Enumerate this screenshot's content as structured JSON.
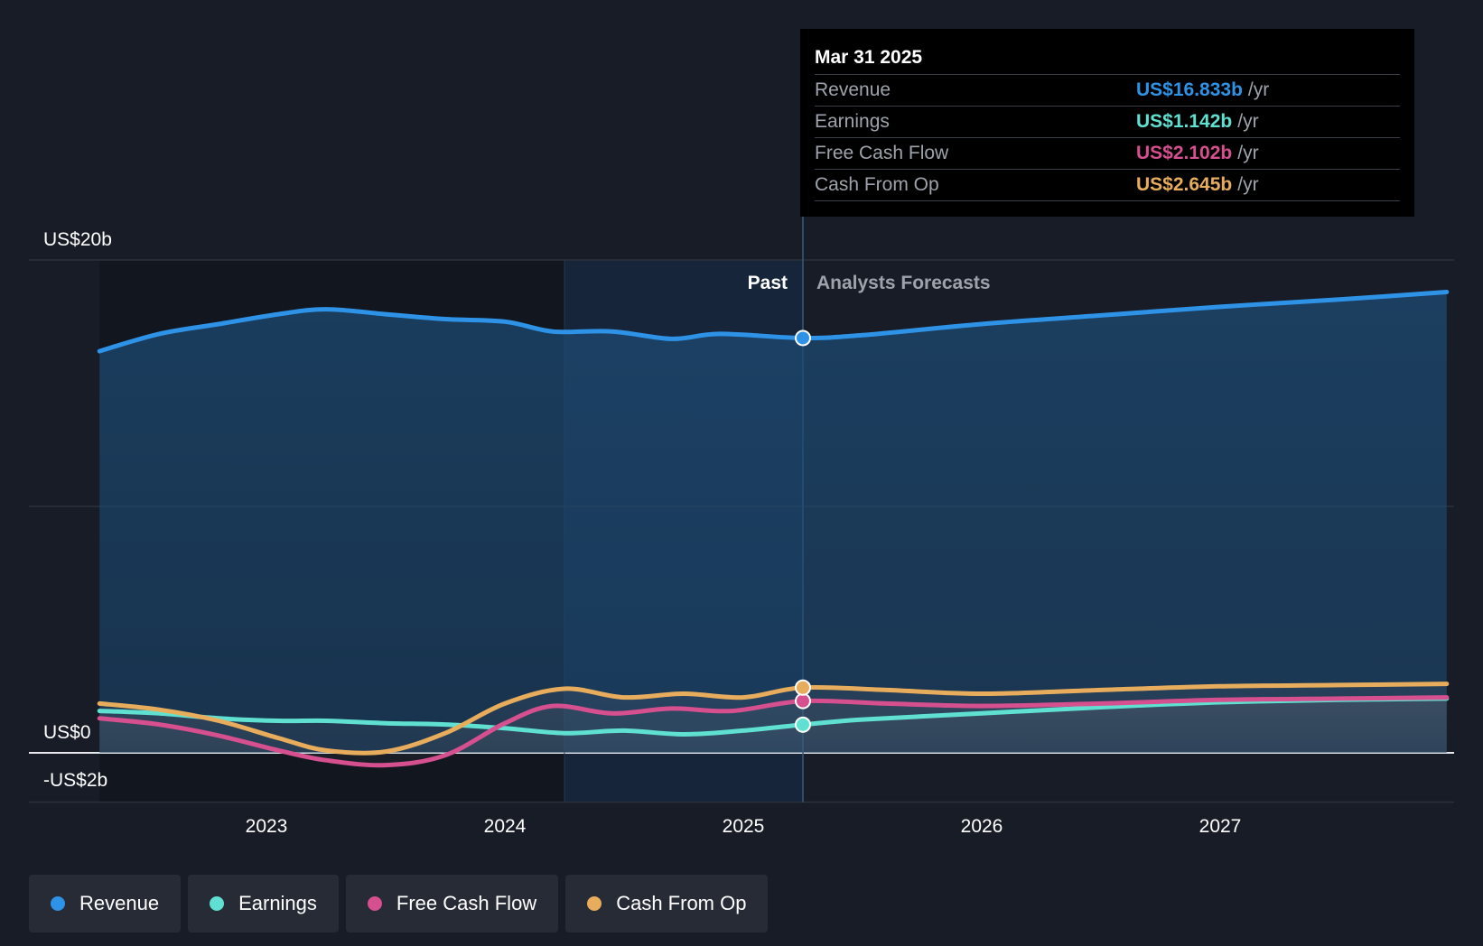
{
  "chart_data": {
    "type": "line",
    "y_unit_labels": {
      "top": "US$20b",
      "zero": "US$0",
      "bottom": "-US$2b"
    },
    "ylim": [
      -2,
      20
    ],
    "xlim": [
      2022.3,
      2027.95
    ],
    "x_ticks": [
      2023,
      2024,
      2025,
      2026,
      2027
    ],
    "x_tick_labels": [
      "2023",
      "2024",
      "2025",
      "2026",
      "2027"
    ],
    "past_label": "Past",
    "forecast_label": "Analysts Forecasts",
    "divider_x": 2025.25,
    "highlight_start_x": 2024.25,
    "grid": true,
    "series": [
      {
        "name": "Revenue",
        "color": "#2e93e6",
        "points": [
          [
            2022.3,
            16.3
          ],
          [
            2022.55,
            17.0
          ],
          [
            2022.8,
            17.4
          ],
          [
            2023.05,
            17.8
          ],
          [
            2023.25,
            18.0
          ],
          [
            2023.5,
            17.8
          ],
          [
            2023.75,
            17.6
          ],
          [
            2024.0,
            17.5
          ],
          [
            2024.2,
            17.1
          ],
          [
            2024.45,
            17.1
          ],
          [
            2024.7,
            16.8
          ],
          [
            2024.9,
            17.0
          ],
          [
            2025.25,
            16.833
          ],
          [
            2025.5,
            16.95
          ],
          [
            2026.0,
            17.4
          ],
          [
            2026.5,
            17.75
          ],
          [
            2027.0,
            18.1
          ],
          [
            2027.5,
            18.4
          ],
          [
            2027.95,
            18.7
          ]
        ]
      },
      {
        "name": "Earnings",
        "color": "#5fe0d1",
        "points": [
          [
            2022.3,
            1.7
          ],
          [
            2022.55,
            1.6
          ],
          [
            2022.8,
            1.4
          ],
          [
            2023.05,
            1.3
          ],
          [
            2023.25,
            1.3
          ],
          [
            2023.5,
            1.2
          ],
          [
            2023.75,
            1.15
          ],
          [
            2024.0,
            1.0
          ],
          [
            2024.25,
            0.8
          ],
          [
            2024.5,
            0.9
          ],
          [
            2024.75,
            0.75
          ],
          [
            2025.0,
            0.9
          ],
          [
            2025.25,
            1.142
          ],
          [
            2025.5,
            1.35
          ],
          [
            2026.0,
            1.6
          ],
          [
            2026.5,
            1.85
          ],
          [
            2027.0,
            2.05
          ],
          [
            2027.5,
            2.15
          ],
          [
            2027.95,
            2.2
          ]
        ]
      },
      {
        "name": "Free Cash Flow",
        "color": "#d64f8f",
        "points": [
          [
            2022.3,
            1.4
          ],
          [
            2022.55,
            1.15
          ],
          [
            2022.8,
            0.7
          ],
          [
            2023.05,
            0.1
          ],
          [
            2023.25,
            -0.3
          ],
          [
            2023.5,
            -0.5
          ],
          [
            2023.75,
            -0.1
          ],
          [
            2024.0,
            1.2
          ],
          [
            2024.2,
            1.9
          ],
          [
            2024.45,
            1.6
          ],
          [
            2024.7,
            1.8
          ],
          [
            2024.95,
            1.7
          ],
          [
            2025.25,
            2.102
          ],
          [
            2025.6,
            2.0
          ],
          [
            2026.0,
            1.9
          ],
          [
            2026.5,
            2.0
          ],
          [
            2027.0,
            2.15
          ],
          [
            2027.5,
            2.2
          ],
          [
            2027.95,
            2.25
          ]
        ]
      },
      {
        "name": "Cash From Op",
        "color": "#e8ad5c",
        "points": [
          [
            2022.3,
            2.0
          ],
          [
            2022.55,
            1.75
          ],
          [
            2022.8,
            1.3
          ],
          [
            2023.05,
            0.6
          ],
          [
            2023.25,
            0.1
          ],
          [
            2023.5,
            0.05
          ],
          [
            2023.75,
            0.8
          ],
          [
            2024.0,
            2.0
          ],
          [
            2024.25,
            2.6
          ],
          [
            2024.5,
            2.25
          ],
          [
            2024.75,
            2.4
          ],
          [
            2025.0,
            2.25
          ],
          [
            2025.25,
            2.645
          ],
          [
            2025.6,
            2.55
          ],
          [
            2026.0,
            2.4
          ],
          [
            2026.5,
            2.55
          ],
          [
            2027.0,
            2.7
          ],
          [
            2027.5,
            2.75
          ],
          [
            2027.95,
            2.8
          ]
        ]
      }
    ]
  },
  "tooltip": {
    "date": "Mar 31 2025",
    "rows": [
      {
        "label": "Revenue",
        "value": "US$16.833b",
        "unit": "/yr",
        "color": "#2e93e6"
      },
      {
        "label": "Earnings",
        "value": "US$1.142b",
        "unit": "/yr",
        "color": "#5fe0d1"
      },
      {
        "label": "Free Cash Flow",
        "value": "US$2.102b",
        "unit": "/yr",
        "color": "#d64f8f"
      },
      {
        "label": "Cash From Op",
        "value": "US$2.645b",
        "unit": "/yr",
        "color": "#e8ad5c"
      }
    ]
  },
  "legend": [
    {
      "label": "Revenue",
      "color": "#2e93e6"
    },
    {
      "label": "Earnings",
      "color": "#5fe0d1"
    },
    {
      "label": "Free Cash Flow",
      "color": "#d64f8f"
    },
    {
      "label": "Cash From Op",
      "color": "#e8ad5c"
    }
  ]
}
